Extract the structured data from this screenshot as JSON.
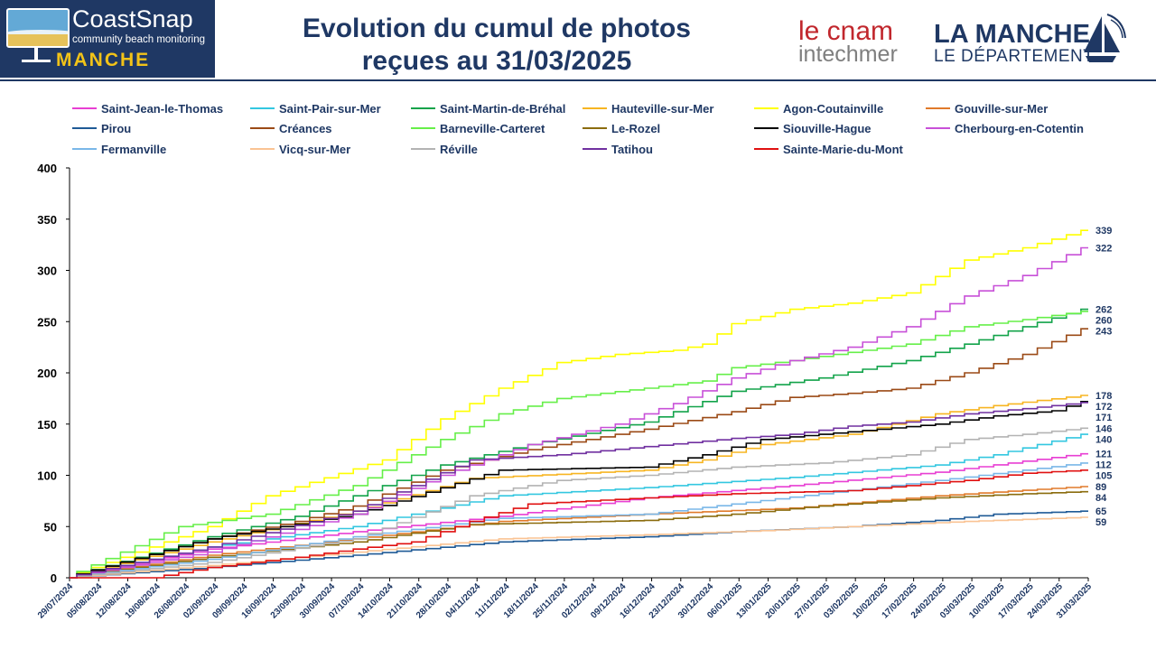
{
  "header": {
    "logo_name": "CoastSnap",
    "logo_subtitle": "community beach monitoring",
    "logo_dept": "MANCHE",
    "title_line1": "Evolution du cumul de photos",
    "title_line2": "reçues au 31/03/2025",
    "partner1_line1": "le cnam",
    "partner1_line2": "intechmer",
    "partner2_line1": "LA MANCHE",
    "partner2_line2": "LE DÉPARTEMENT"
  },
  "colors": {
    "header_bg": "#1f3864",
    "accent": "#f2c318",
    "cnam_red": "#c1272d"
  },
  "chart_data": {
    "type": "line",
    "title": "",
    "xlabel": "",
    "ylabel": "",
    "ylim": [
      0,
      400
    ],
    "yticks": [
      0,
      50,
      100,
      150,
      200,
      250,
      300,
      350,
      400
    ],
    "x_tick_labels": [
      "29/07/2024",
      "05/08/2024",
      "12/08/2024",
      "19/08/2024",
      "26/08/2024",
      "02/09/2024",
      "09/09/2024",
      "16/09/2024",
      "23/09/2024",
      "30/09/2024",
      "07/10/2024",
      "14/10/2024",
      "21/10/2024",
      "28/10/2024",
      "04/11/2024",
      "11/11/2024",
      "18/11/2024",
      "25/11/2024",
      "02/12/2024",
      "09/12/2024",
      "16/12/2024",
      "23/12/2024",
      "30/12/2024",
      "06/01/2025",
      "13/01/2025",
      "20/01/2025",
      "27/01/2025",
      "03/02/2025",
      "10/02/2025",
      "17/02/2025",
      "24/02/2025",
      "03/03/2025",
      "10/03/2025",
      "17/03/2025",
      "24/03/2025",
      "31/03/2025"
    ],
    "x_weeks": 35,
    "legend_position": "top",
    "grid": false,
    "series": [
      {
        "name": "Saint-Jean-le-Thomas",
        "color": "#e83fd3",
        "end_label": "121",
        "points": [
          [
            0,
            0
          ],
          [
            5,
            28
          ],
          [
            10,
            45
          ],
          [
            15,
            60
          ],
          [
            20,
            78
          ],
          [
            25,
            90
          ],
          [
            30,
            103
          ],
          [
            35,
            121
          ]
        ]
      },
      {
        "name": "Saint-Pair-sur-Mer",
        "color": "#33c7e0",
        "end_label": "140",
        "points": [
          [
            0,
            0
          ],
          [
            5,
            30
          ],
          [
            10,
            50
          ],
          [
            15,
            80
          ],
          [
            20,
            88
          ],
          [
            25,
            98
          ],
          [
            30,
            110
          ],
          [
            32,
            120
          ],
          [
            35,
            140
          ]
        ]
      },
      {
        "name": "Saint-Martin-de-Bréhal",
        "color": "#12a34a",
        "end_label": "262",
        "points": [
          [
            0,
            0
          ],
          [
            5,
            40
          ],
          [
            8,
            60
          ],
          [
            10,
            80
          ],
          [
            13,
            110
          ],
          [
            16,
            130
          ],
          [
            20,
            152
          ],
          [
            23,
            182
          ],
          [
            26,
            195
          ],
          [
            29,
            212
          ],
          [
            31,
            228
          ],
          [
            33,
            245
          ],
          [
            35,
            262
          ]
        ]
      },
      {
        "name": "Hauteville-sur-Mer",
        "color": "#f7b522",
        "end_label": "178",
        "points": [
          [
            0,
            0
          ],
          [
            5,
            35
          ],
          [
            10,
            65
          ],
          [
            14,
            97
          ],
          [
            20,
            105
          ],
          [
            22,
            115
          ],
          [
            24,
            130
          ],
          [
            27,
            140
          ],
          [
            30,
            160
          ],
          [
            32,
            168
          ],
          [
            35,
            178
          ]
        ]
      },
      {
        "name": "Agon-Coutainville",
        "color": "#ffff00",
        "end_label": "339",
        "points": [
          [
            0,
            0
          ],
          [
            5,
            50
          ],
          [
            7,
            80
          ],
          [
            11,
            115
          ],
          [
            13,
            155
          ],
          [
            15,
            185
          ],
          [
            17,
            210
          ],
          [
            19,
            218
          ],
          [
            21,
            222
          ],
          [
            22,
            228
          ],
          [
            23,
            248
          ],
          [
            25,
            262
          ],
          [
            27,
            268
          ],
          [
            29,
            278
          ],
          [
            31,
            310
          ],
          [
            33,
            322
          ],
          [
            35,
            339
          ]
        ]
      },
      {
        "name": "Gouville-sur-Mer",
        "color": "#e07a2a",
        "end_label": "89",
        "points": [
          [
            0,
            0
          ],
          [
            5,
            22
          ],
          [
            10,
            38
          ],
          [
            15,
            55
          ],
          [
            20,
            62
          ],
          [
            25,
            68
          ],
          [
            30,
            80
          ],
          [
            35,
            89
          ]
        ]
      },
      {
        "name": "Pirou",
        "color": "#1f5a96",
        "end_label": "65",
        "points": [
          [
            0,
            0
          ],
          [
            5,
            10
          ],
          [
            10,
            22
          ],
          [
            15,
            35
          ],
          [
            20,
            40
          ],
          [
            23,
            45
          ],
          [
            27,
            50
          ],
          [
            30,
            56
          ],
          [
            32,
            62
          ],
          [
            35,
            65
          ]
        ]
      },
      {
        "name": "Créances",
        "color": "#9b4a16",
        "end_label": "243",
        "points": [
          [
            0,
            0
          ],
          [
            5,
            38
          ],
          [
            8,
            55
          ],
          [
            10,
            70
          ],
          [
            13,
            105
          ],
          [
            16,
            125
          ],
          [
            20,
            145
          ],
          [
            23,
            162
          ],
          [
            25,
            176
          ],
          [
            27,
            180
          ],
          [
            29,
            185
          ],
          [
            31,
            200
          ],
          [
            33,
            218
          ],
          [
            35,
            243
          ]
        ]
      },
      {
        "name": "Barneville-Carteret",
        "color": "#66ef49",
        "end_label": "260",
        "points": [
          [
            0,
            0
          ],
          [
            4,
            50
          ],
          [
            7,
            62
          ],
          [
            10,
            90
          ],
          [
            13,
            135
          ],
          [
            15,
            160
          ],
          [
            17,
            175
          ],
          [
            20,
            185
          ],
          [
            22,
            192
          ],
          [
            23,
            205
          ],
          [
            25,
            212
          ],
          [
            27,
            220
          ],
          [
            29,
            228
          ],
          [
            31,
            245
          ],
          [
            33,
            252
          ],
          [
            35,
            260
          ]
        ]
      },
      {
        "name": "Le-Rozel",
        "color": "#8b6c0e",
        "end_label": "84",
        "points": [
          [
            0,
            0
          ],
          [
            5,
            20
          ],
          [
            10,
            35
          ],
          [
            14,
            52
          ],
          [
            20,
            56
          ],
          [
            23,
            62
          ],
          [
            26,
            70
          ],
          [
            30,
            78
          ],
          [
            33,
            82
          ],
          [
            35,
            84
          ]
        ]
      },
      {
        "name": "Siouville-Hague",
        "color": "#000000",
        "end_label": "172",
        "points": [
          [
            0,
            0
          ],
          [
            5,
            38
          ],
          [
            10,
            62
          ],
          [
            15,
            105
          ],
          [
            20,
            108
          ],
          [
            22,
            120
          ],
          [
            24,
            135
          ],
          [
            26,
            140
          ],
          [
            28,
            145
          ],
          [
            30,
            150
          ],
          [
            32,
            158
          ],
          [
            34,
            163
          ],
          [
            35,
            172
          ]
        ]
      },
      {
        "name": "Cherbourg-en-Cotentin",
        "color": "#c850d8",
        "end_label": "322",
        "points": [
          [
            0,
            0
          ],
          [
            5,
            25
          ],
          [
            10,
            62
          ],
          [
            13,
            100
          ],
          [
            16,
            130
          ],
          [
            19,
            150
          ],
          [
            21,
            170
          ],
          [
            23,
            195
          ],
          [
            25,
            212
          ],
          [
            27,
            225
          ],
          [
            29,
            245
          ],
          [
            31,
            275
          ],
          [
            33,
            295
          ],
          [
            35,
            322
          ]
        ]
      },
      {
        "name": "Fermanville",
        "color": "#7ab7e8",
        "end_label": "112",
        "points": [
          [
            0,
            0
          ],
          [
            5,
            18
          ],
          [
            10,
            40
          ],
          [
            15,
            58
          ],
          [
            20,
            62
          ],
          [
            23,
            72
          ],
          [
            26,
            82
          ],
          [
            30,
            95
          ],
          [
            33,
            105
          ],
          [
            35,
            112
          ]
        ]
      },
      {
        "name": "Vicq-sur-Mer",
        "color": "#fac393",
        "end_label": "59",
        "points": [
          [
            0,
            0
          ],
          [
            5,
            12
          ],
          [
            10,
            25
          ],
          [
            15,
            38
          ],
          [
            20,
            42
          ],
          [
            24,
            46
          ],
          [
            27,
            50
          ],
          [
            31,
            55
          ],
          [
            35,
            59
          ]
        ]
      },
      {
        "name": "Réville",
        "color": "#b3b3b3",
        "end_label": "146",
        "points": [
          [
            0,
            0
          ],
          [
            5,
            15
          ],
          [
            10,
            38
          ],
          [
            14,
            80
          ],
          [
            17,
            95
          ],
          [
            20,
            100
          ],
          [
            23,
            108
          ],
          [
            26,
            112
          ],
          [
            29,
            120
          ],
          [
            31,
            135
          ],
          [
            33,
            140
          ],
          [
            35,
            146
          ]
        ]
      },
      {
        "name": "Tatihou",
        "color": "#7030a0",
        "end_label": "171",
        "points": [
          [
            0,
            0
          ],
          [
            5,
            30
          ],
          [
            10,
            65
          ],
          [
            14,
            115
          ],
          [
            17,
            120
          ],
          [
            20,
            128
          ],
          [
            23,
            136
          ],
          [
            25,
            140
          ],
          [
            27,
            148
          ],
          [
            29,
            152
          ],
          [
            31,
            160
          ],
          [
            33,
            165
          ],
          [
            35,
            171
          ]
        ]
      },
      {
        "name": "Sainte-Marie-du-Mont",
        "color": "#e01010",
        "end_label": "105",
        "points": [
          [
            0,
            0
          ],
          [
            3,
            0
          ],
          [
            5,
            10
          ],
          [
            8,
            20
          ],
          [
            10,
            28
          ],
          [
            12,
            35
          ],
          [
            14,
            55
          ],
          [
            16,
            72
          ],
          [
            20,
            78
          ],
          [
            23,
            82
          ],
          [
            27,
            85
          ],
          [
            29,
            90
          ],
          [
            31,
            95
          ],
          [
            33,
            102
          ],
          [
            35,
            105
          ]
        ]
      }
    ]
  }
}
